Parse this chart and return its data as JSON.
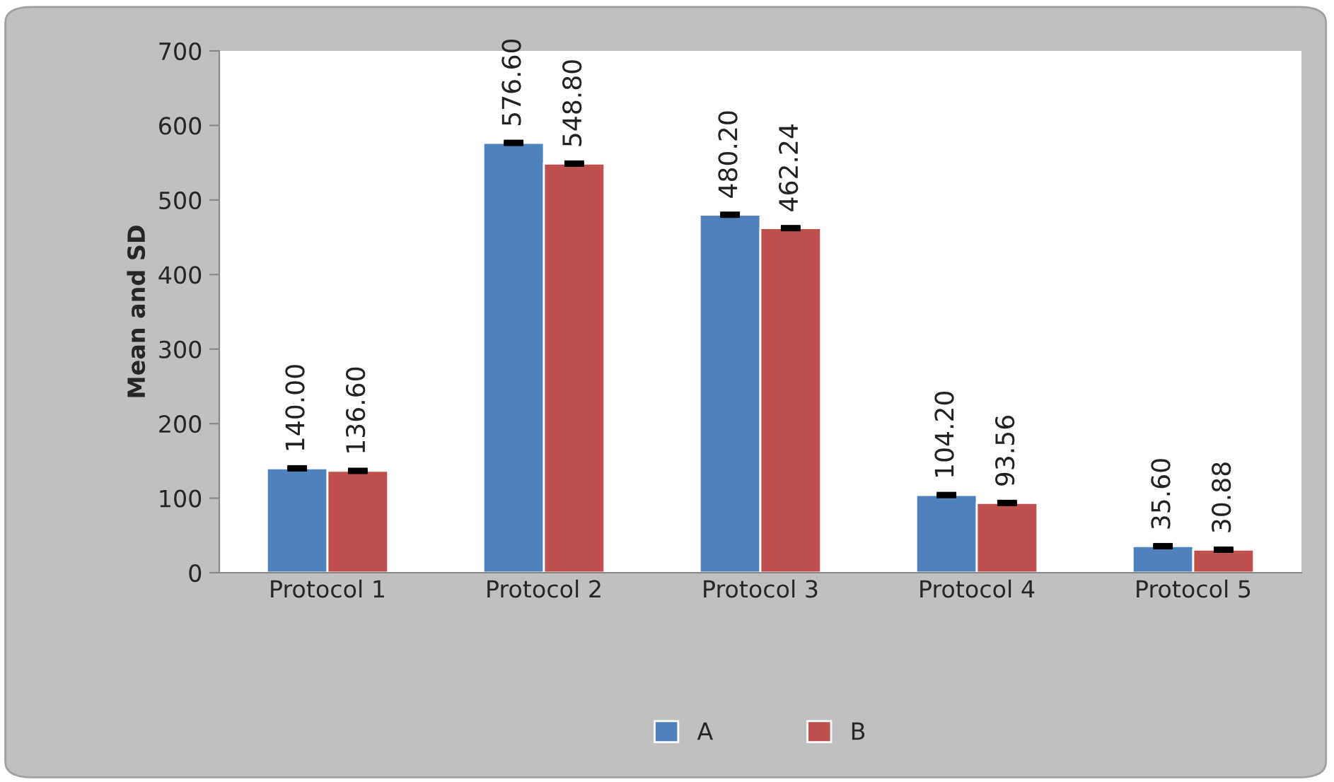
{
  "chart_data": {
    "type": "bar",
    "ylabel": "Mean and SD",
    "categories": [
      "Protocol 1",
      "Protocol 2",
      "Protocol 3",
      "Protocol 4",
      "Protocol 5"
    ],
    "series": [
      {
        "name": "A",
        "color": "#4f81bd",
        "values": [
          140.0,
          576.6,
          480.2,
          104.2,
          35.6
        ],
        "errors": [
          1,
          1,
          1,
          1,
          1
        ],
        "value_labels": [
          "140.00",
          "576.60",
          "480.20",
          "104.20",
          "35.60"
        ]
      },
      {
        "name": "B",
        "color": "#c0504d",
        "values": [
          136.6,
          548.8,
          462.24,
          93.56,
          30.88
        ],
        "errors": [
          1,
          1,
          1,
          1,
          1
        ],
        "value_labels": [
          "136.60",
          "548.80",
          "462.24",
          "93.56",
          "30.88"
        ]
      }
    ],
    "ylim": [
      0,
      700
    ],
    "yticks": [
      0,
      100,
      200,
      300,
      400,
      500,
      600,
      700
    ],
    "grid": false,
    "legend": "bottom"
  }
}
